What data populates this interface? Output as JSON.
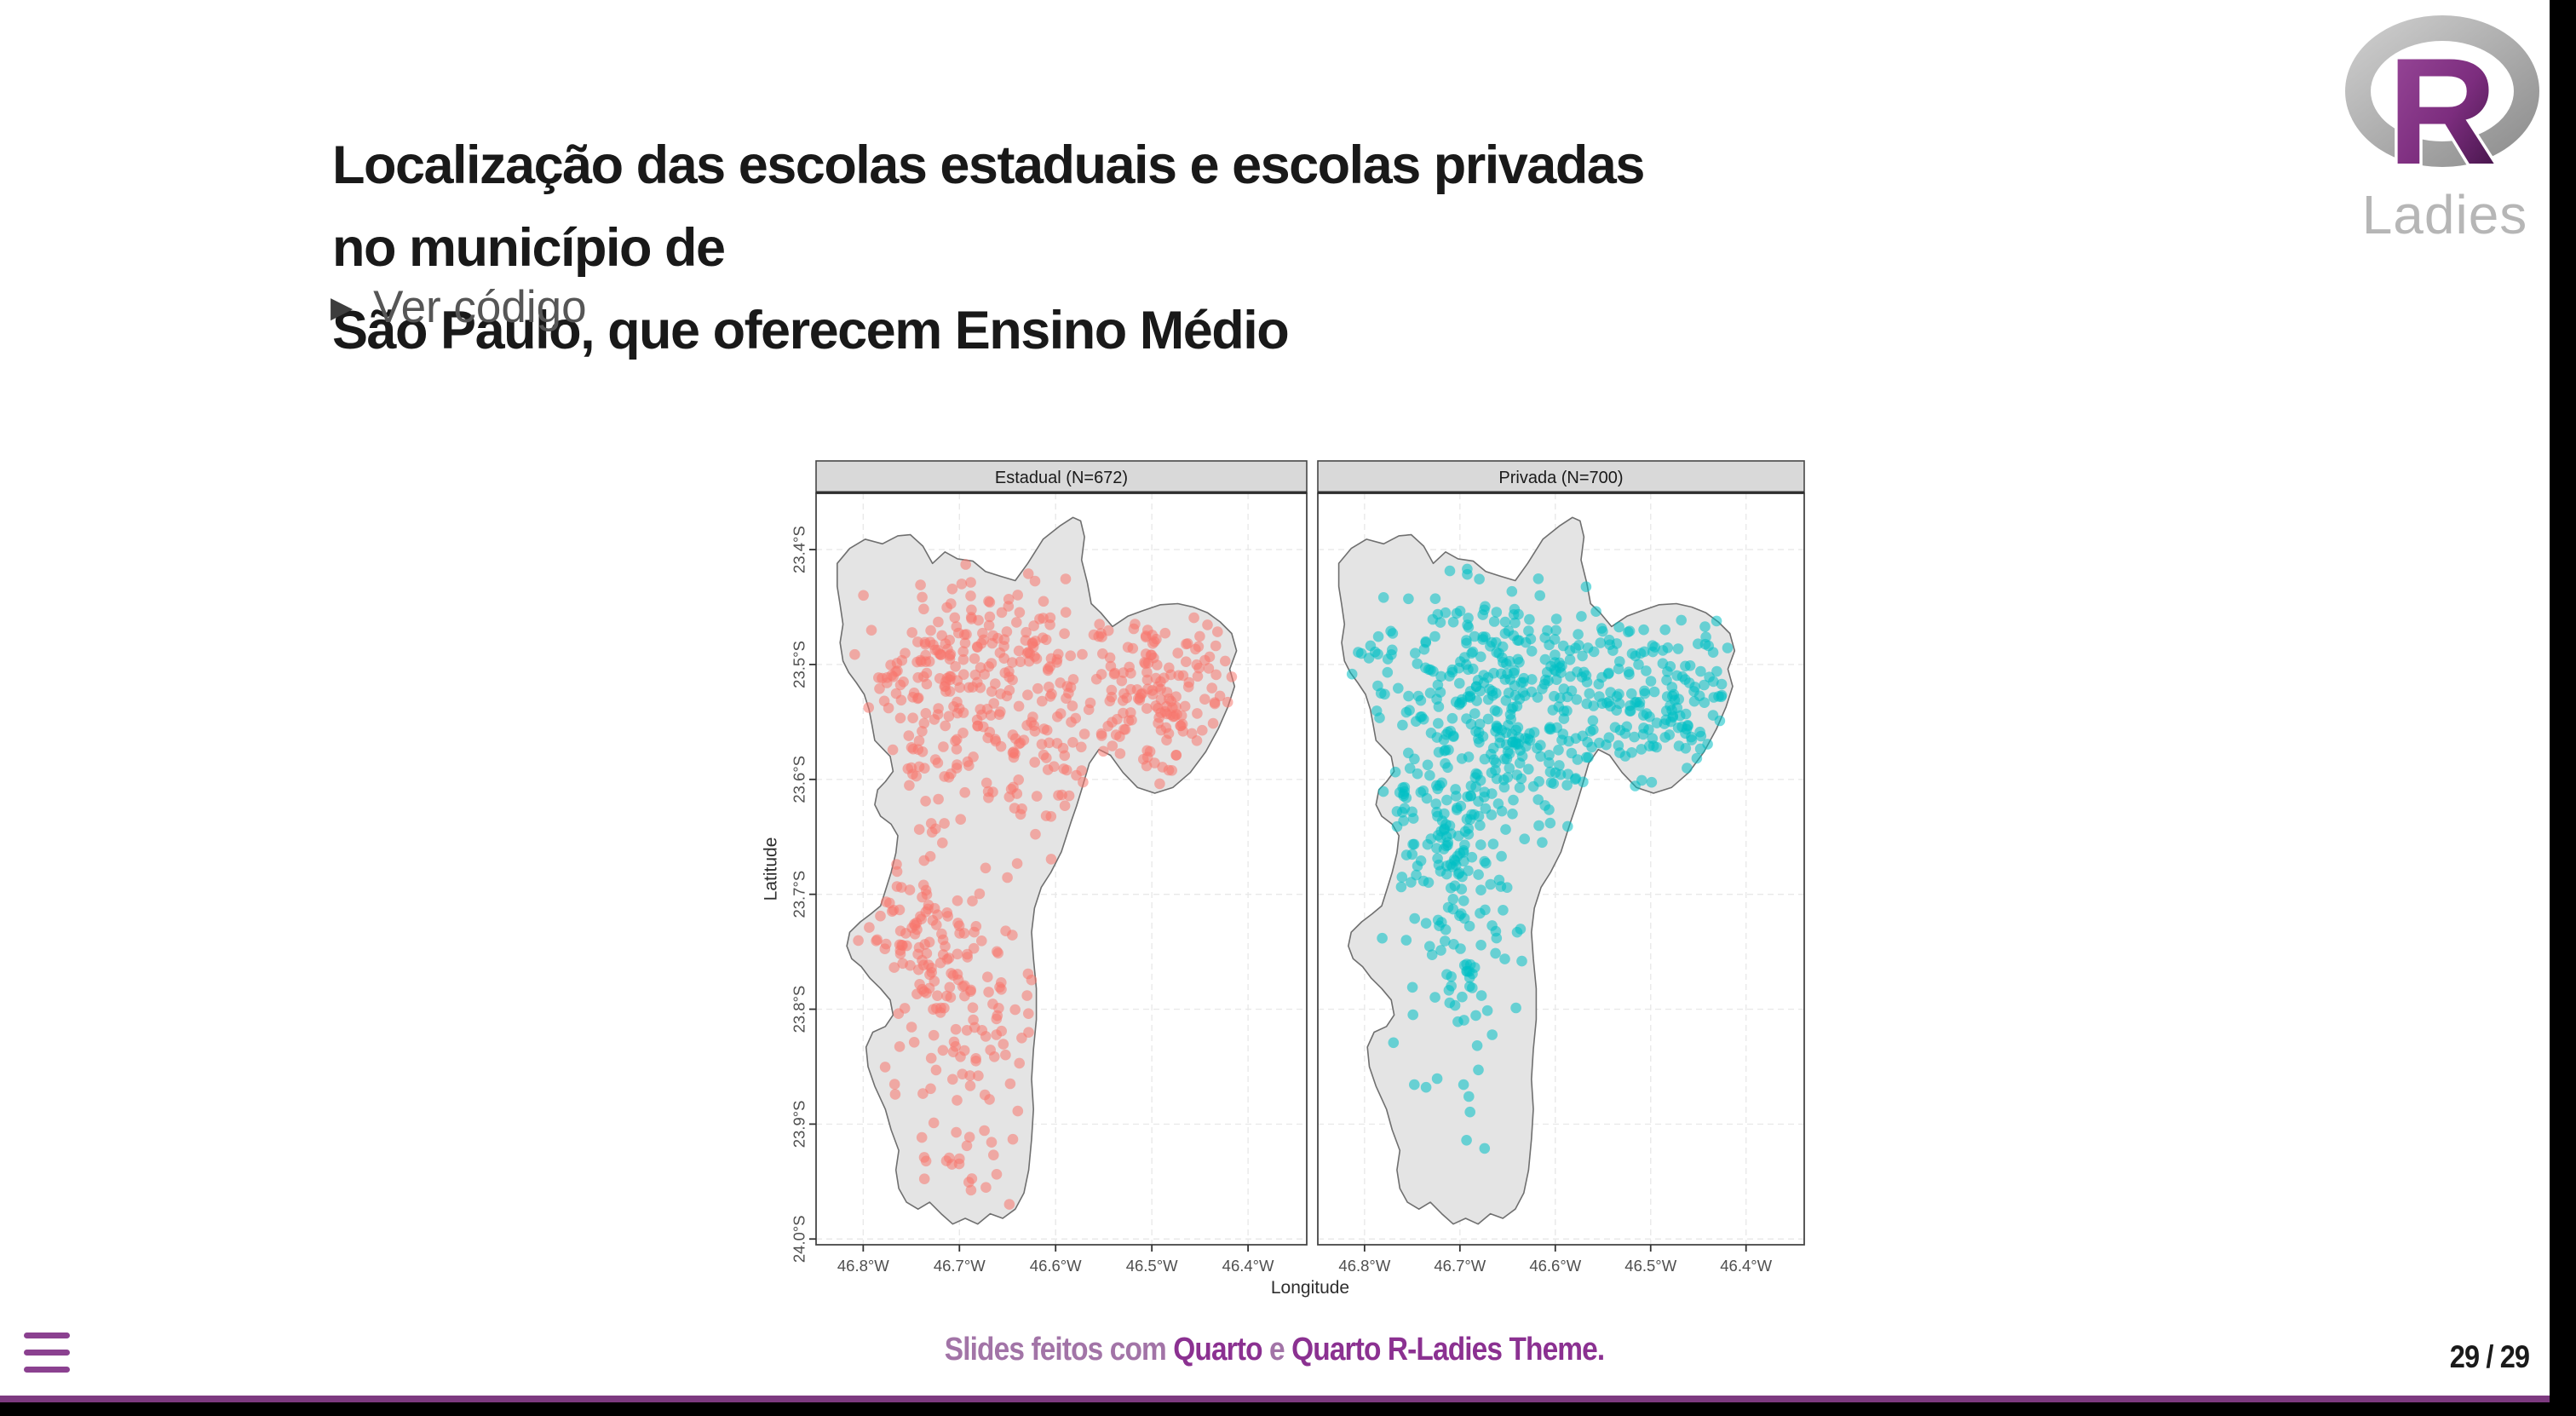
{
  "slide": {
    "title_line1": "Localização das escolas estaduais e escolas privadas no município de",
    "title_line2": "São Paulo, que oferecem Ensino Médio",
    "code_toggle": {
      "marker": "▶",
      "label": "Ver código"
    },
    "page_number": "29 / 29",
    "footer": {
      "prefix": "Slides feitos com ",
      "link1": "Quarto",
      "middle": " e ",
      "link2": "Quarto R-Ladies Theme."
    },
    "logo": {
      "r_text": "R",
      "ladies_text": "Ladies"
    }
  },
  "chart_data": {
    "type": "scatter",
    "subtype": "faceted_point_map",
    "region": "Município de São Paulo",
    "xlabel": "Longitude",
    "ylabel": "Latitude",
    "x_ticks": [
      "46.8°W",
      "46.7°W",
      "46.6°W",
      "46.5°W",
      "46.4°W"
    ],
    "x_tick_values": [
      -46.8,
      -46.7,
      -46.6,
      -46.5,
      -46.4
    ],
    "y_ticks": [
      "23.4°S",
      "23.5°S",
      "23.6°S",
      "23.7°S",
      "23.8°S",
      "23.9°S",
      "24.0°S"
    ],
    "y_tick_values": [
      -23.4,
      -23.5,
      -23.6,
      -23.7,
      -23.8,
      -23.9,
      -24.0
    ],
    "xlim": [
      -46.849,
      -46.339
    ],
    "ylim": [
      -24.005,
      -23.351
    ],
    "grid": "dashed",
    "legend": "none",
    "facets": [
      {
        "label": "Estadual (N=672)",
        "n": 672,
        "color": "#F8766D",
        "seed": 12345,
        "clusters": [
          {
            "lon": -46.69,
            "lat": -23.49,
            "sd_lon": 0.068,
            "sd_lat": 0.032,
            "n": 150
          },
          {
            "lon": -46.74,
            "lat": -23.56,
            "sd_lon": 0.037,
            "sd_lat": 0.033,
            "n": 60
          },
          {
            "lon": -46.63,
            "lat": -23.565,
            "sd_lon": 0.047,
            "sd_lat": 0.046,
            "n": 110
          },
          {
            "lon": -46.48,
            "lat": -23.53,
            "sd_lon": 0.052,
            "sd_lat": 0.039,
            "n": 150
          },
          {
            "lon": -46.74,
            "lat": -23.745,
            "sd_lon": 0.031,
            "sd_lat": 0.046,
            "n": 110
          },
          {
            "lon": -46.68,
            "lat": -23.82,
            "sd_lon": 0.036,
            "sd_lat": 0.052,
            "n": 70
          },
          {
            "lon": -46.69,
            "lat": -23.925,
            "sd_lon": 0.036,
            "sd_lat": 0.033,
            "n": 22
          }
        ]
      },
      {
        "label": "Privada (N=700)",
        "n": 700,
        "color": "#00BFC4",
        "seed": 67890,
        "clusters": [
          {
            "lon": -46.69,
            "lat": -23.495,
            "sd_lon": 0.065,
            "sd_lat": 0.03,
            "n": 140
          },
          {
            "lon": -46.64,
            "lat": -23.565,
            "sd_lon": 0.052,
            "sd_lat": 0.042,
            "n": 200
          },
          {
            "lon": -46.48,
            "lat": -23.525,
            "sd_lon": 0.052,
            "sd_lat": 0.037,
            "n": 155
          },
          {
            "lon": -46.73,
            "lat": -23.62,
            "sd_lon": 0.03,
            "sd_lat": 0.04,
            "n": 85
          },
          {
            "lon": -46.7,
            "lat": -23.7,
            "sd_lon": 0.033,
            "sd_lat": 0.048,
            "n": 100
          },
          {
            "lon": -46.7,
            "lat": -23.82,
            "sd_lon": 0.025,
            "sd_lat": 0.04,
            "n": 20
          }
        ]
      }
    ],
    "point_alpha": 0.55,
    "colors": {
      "map_fill": "#e4e4e4",
      "map_stroke": "#6f6f6f",
      "strip_fill": "#d9d9d9",
      "panel_border": "#474747",
      "axis_text": "#4f4f4f",
      "axis_title": "#2e2e2e",
      "grid": "#e9e9e9"
    },
    "boundary": [
      [
        -46.827,
        -23.412
      ],
      [
        -46.814,
        -23.399
      ],
      [
        -46.798,
        -23.391
      ],
      [
        -46.78,
        -23.395
      ],
      [
        -46.764,
        -23.388
      ],
      [
        -46.751,
        -23.387
      ],
      [
        -46.738,
        -23.397
      ],
      [
        -46.728,
        -23.412
      ],
      [
        -46.715,
        -23.402
      ],
      [
        -46.702,
        -23.408
      ],
      [
        -46.686,
        -23.41
      ],
      [
        -46.673,
        -23.419
      ],
      [
        -46.658,
        -23.423
      ],
      [
        -46.642,
        -23.427
      ],
      [
        -46.629,
        -23.412
      ],
      [
        -46.613,
        -23.391
      ],
      [
        -46.595,
        -23.379
      ],
      [
        -46.582,
        -23.372
      ],
      [
        -46.574,
        -23.375
      ],
      [
        -46.57,
        -23.389
      ],
      [
        -46.573,
        -23.409
      ],
      [
        -46.567,
        -23.429
      ],
      [
        -46.563,
        -23.447
      ],
      [
        -46.553,
        -23.455
      ],
      [
        -46.541,
        -23.467
      ],
      [
        -46.525,
        -23.458
      ],
      [
        -46.509,
        -23.453
      ],
      [
        -46.491,
        -23.448
      ],
      [
        -46.473,
        -23.447
      ],
      [
        -46.457,
        -23.45
      ],
      [
        -46.442,
        -23.455
      ],
      [
        -46.429,
        -23.463
      ],
      [
        -46.417,
        -23.473
      ],
      [
        -46.412,
        -23.488
      ],
      [
        -46.419,
        -23.504
      ],
      [
        -46.414,
        -23.519
      ],
      [
        -46.421,
        -23.537
      ],
      [
        -46.431,
        -23.556
      ],
      [
        -46.444,
        -23.576
      ],
      [
        -46.46,
        -23.594
      ],
      [
        -46.478,
        -23.607
      ],
      [
        -46.497,
        -23.612
      ],
      [
        -46.515,
        -23.607
      ],
      [
        -46.53,
        -23.594
      ],
      [
        -46.543,
        -23.579
      ],
      [
        -46.555,
        -23.574
      ],
      [
        -46.565,
        -23.586
      ],
      [
        -46.573,
        -23.609
      ],
      [
        -46.584,
        -23.637
      ],
      [
        -46.594,
        -23.663
      ],
      [
        -46.605,
        -23.681
      ],
      [
        -46.615,
        -23.694
      ],
      [
        -46.622,
        -23.712
      ],
      [
        -46.625,
        -23.733
      ],
      [
        -46.623,
        -23.756
      ],
      [
        -46.62,
        -23.782
      ],
      [
        -46.62,
        -23.809
      ],
      [
        -46.623,
        -23.835
      ],
      [
        -46.625,
        -23.861
      ],
      [
        -46.623,
        -23.887
      ],
      [
        -46.625,
        -23.913
      ],
      [
        -46.628,
        -23.94
      ],
      [
        -46.633,
        -23.96
      ],
      [
        -46.642,
        -23.974
      ],
      [
        -46.655,
        -23.982
      ],
      [
        -46.668,
        -23.978
      ],
      [
        -46.681,
        -23.987
      ],
      [
        -46.694,
        -23.982
      ],
      [
        -46.707,
        -23.987
      ],
      [
        -46.719,
        -23.978
      ],
      [
        -46.731,
        -23.968
      ],
      [
        -46.743,
        -23.974
      ],
      [
        -46.755,
        -23.968
      ],
      [
        -46.763,
        -23.956
      ],
      [
        -46.766,
        -23.94
      ],
      [
        -46.763,
        -23.923
      ],
      [
        -46.771,
        -23.905
      ],
      [
        -46.777,
        -23.887
      ],
      [
        -46.788,
        -23.867
      ],
      [
        -46.795,
        -23.85
      ],
      [
        -46.797,
        -23.833
      ],
      [
        -46.79,
        -23.82
      ],
      [
        -46.777,
        -23.815
      ],
      [
        -46.769,
        -23.805
      ],
      [
        -46.772,
        -23.792
      ],
      [
        -46.782,
        -23.782
      ],
      [
        -46.793,
        -23.773
      ],
      [
        -46.802,
        -23.763
      ],
      [
        -46.812,
        -23.756
      ],
      [
        -46.817,
        -23.745
      ],
      [
        -46.814,
        -23.733
      ],
      [
        -46.803,
        -23.724
      ],
      [
        -46.792,
        -23.717
      ],
      [
        -46.782,
        -23.71
      ],
      [
        -46.777,
        -23.697
      ],
      [
        -46.771,
        -23.681
      ],
      [
        -46.766,
        -23.664
      ],
      [
        -46.764,
        -23.649
      ],
      [
        -46.771,
        -23.639
      ],
      [
        -46.782,
        -23.632
      ],
      [
        -46.788,
        -23.622
      ],
      [
        -46.785,
        -23.609
      ],
      [
        -46.777,
        -23.602
      ],
      [
        -46.769,
        -23.593
      ],
      [
        -46.772,
        -23.58
      ],
      [
        -46.78,
        -23.573
      ],
      [
        -46.788,
        -23.566
      ],
      [
        -46.791,
        -23.552
      ],
      [
        -46.794,
        -23.539
      ],
      [
        -46.799,
        -23.526
      ],
      [
        -46.807,
        -23.516
      ],
      [
        -46.815,
        -23.507
      ],
      [
        -46.821,
        -23.497
      ],
      [
        -46.824,
        -23.481
      ],
      [
        -46.821,
        -23.465
      ],
      [
        -46.824,
        -23.448
      ],
      [
        -46.827,
        -23.432
      ]
    ]
  }
}
